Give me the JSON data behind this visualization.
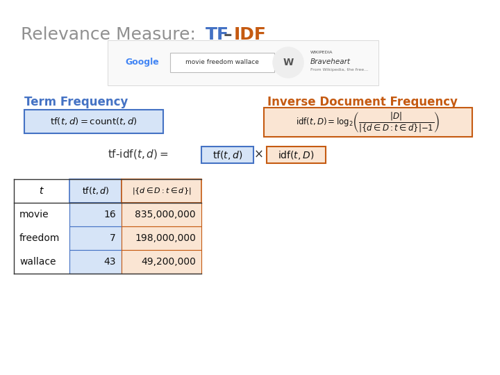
{
  "title_gray": "Relevance Measure: ",
  "blue_color": "#4472C4",
  "orange_color": "#C55A11",
  "blue_fill": "#D6E4F7",
  "orange_fill": "#FAE5D3",
  "bg_color": "#FFFFFF",
  "gray_color": "#909090",
  "table_rows": [
    [
      "movie",
      "16",
      "835,000,000"
    ],
    [
      "freedom",
      "7",
      "198,000,000"
    ],
    [
      "wallace",
      "43",
      "49,200,000"
    ]
  ]
}
